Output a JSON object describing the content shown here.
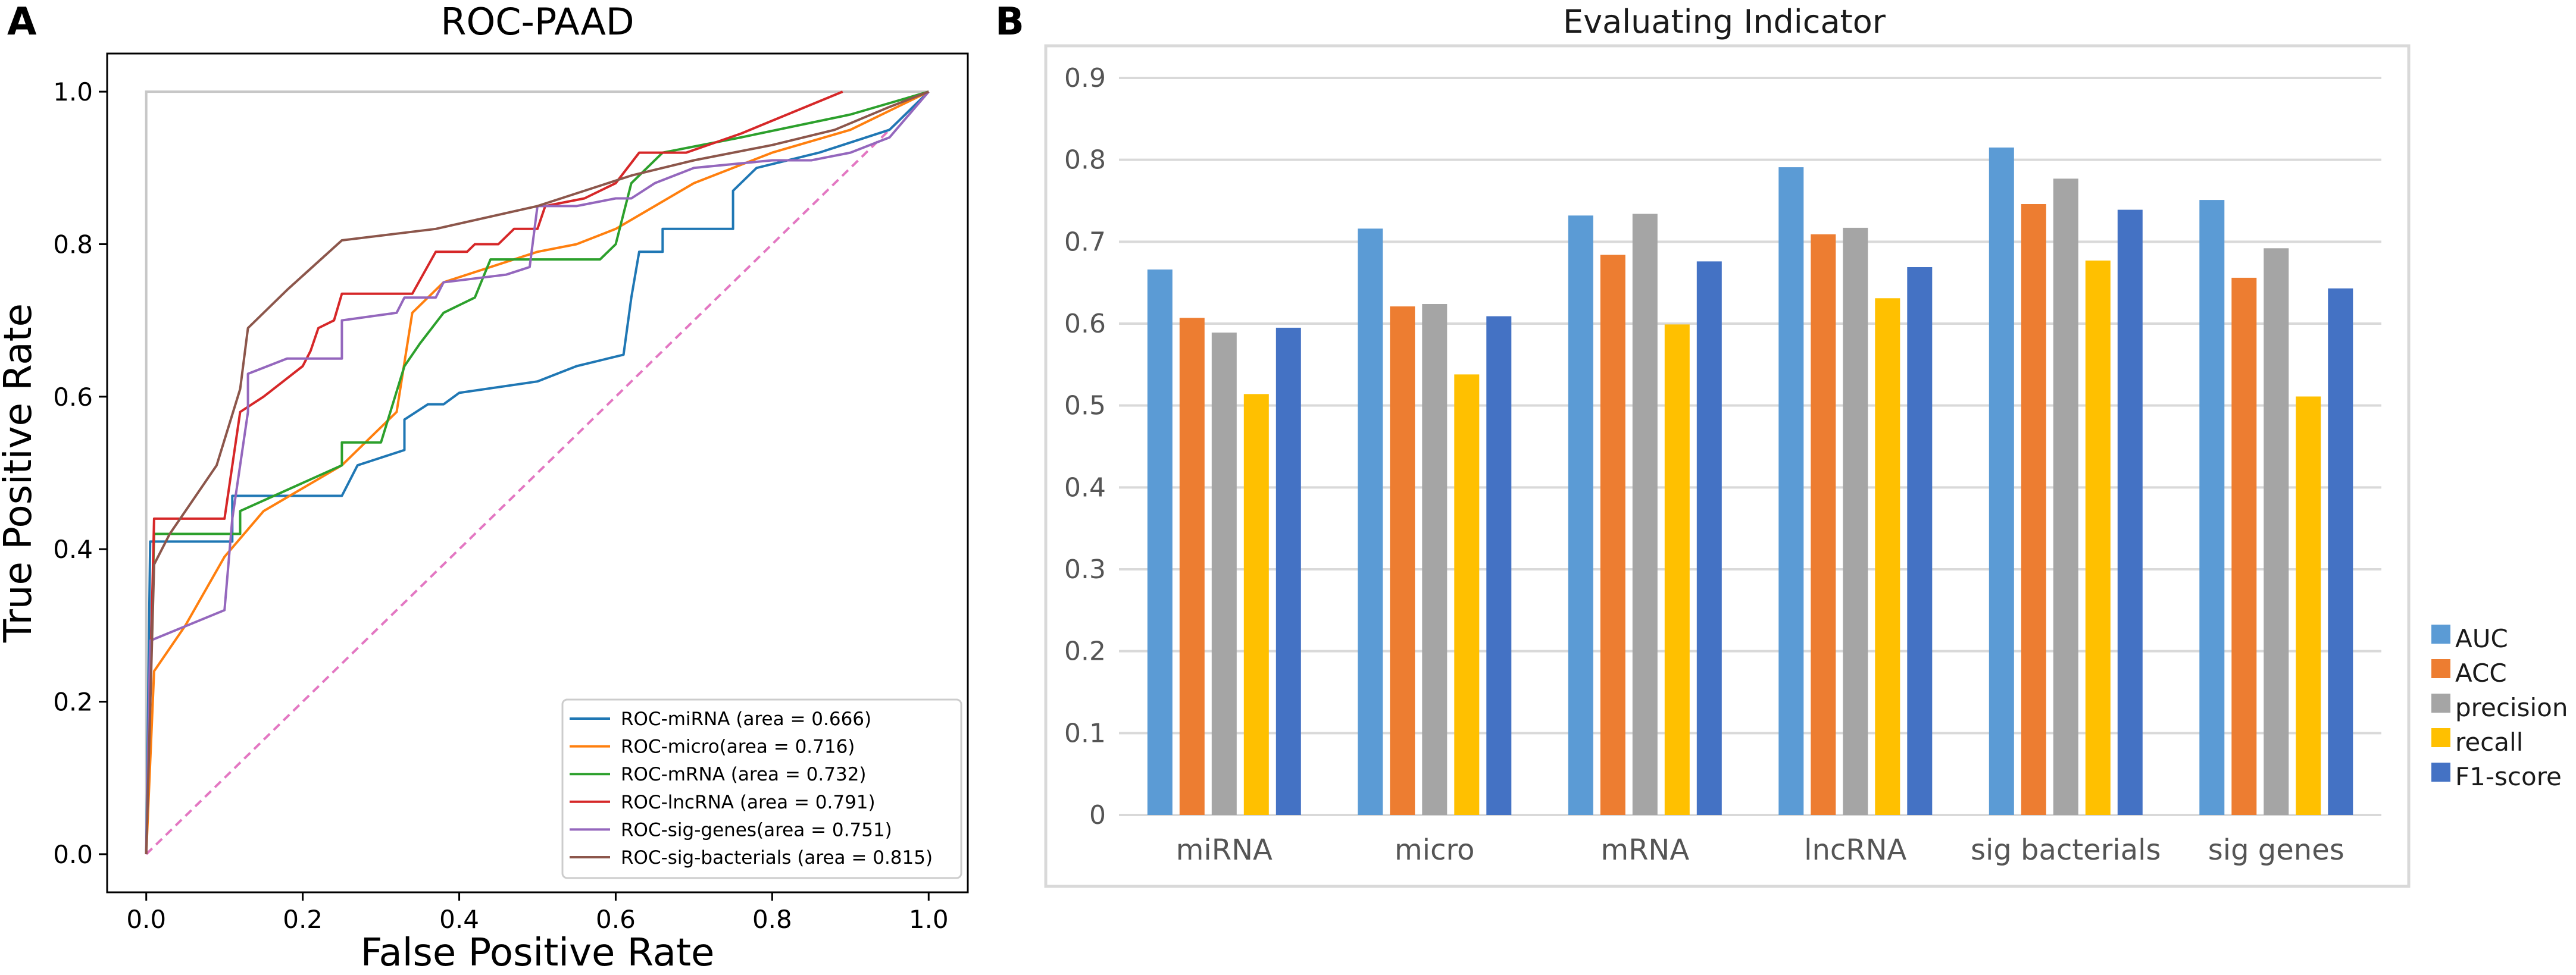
{
  "panel_a": {
    "letter": "A",
    "title": "ROC-PAAD",
    "xlabel": "False Positive Rate",
    "ylabel": "True Positive Rate",
    "xticks": [
      "0.0",
      "0.2",
      "0.4",
      "0.6",
      "0.8",
      "1.0"
    ],
    "yticks": [
      "0.0",
      "0.2",
      "0.4",
      "0.6",
      "0.8",
      "1.0"
    ]
  },
  "panel_b": {
    "letter": "B",
    "title": "Evaluating Indicator",
    "yticks": [
      "0",
      "0.1",
      "0.2",
      "0.3",
      "0.4",
      "0.5",
      "0.6",
      "0.7",
      "0.8",
      "0.9"
    ]
  },
  "chart_data": [
    {
      "type": "line",
      "title": "ROC-PAAD",
      "xlabel": "False Positive Rate",
      "ylabel": "True Positive Rate",
      "xlim": [
        -0.05,
        1.05
      ],
      "ylim": [
        -0.05,
        1.05
      ],
      "legend_position": "lower-right",
      "reference_lines": [
        {
          "name": "perfect",
          "color": "#c7c7c7",
          "style": "solid",
          "x": [
            0,
            0,
            1
          ],
          "y": [
            0,
            1,
            1
          ]
        },
        {
          "name": "chance",
          "color": "#e377c2",
          "style": "dashed",
          "x": [
            0,
            1
          ],
          "y": [
            0,
            1
          ]
        }
      ],
      "series": [
        {
          "name": "ROC-miRNA (area = 0.666)",
          "color": "#1f77b4",
          "x": [
            0,
            0.005,
            0.005,
            0.11,
            0.11,
            0.25,
            0.27,
            0.33,
            0.33,
            0.36,
            0.38,
            0.4,
            0.5,
            0.55,
            0.61,
            0.62,
            0.63,
            0.63,
            0.66,
            0.66,
            0.73,
            0.75,
            0.75,
            0.78,
            0.86,
            0.95,
            1.0
          ],
          "y": [
            0,
            0.41,
            0.41,
            0.41,
            0.47,
            0.47,
            0.51,
            0.53,
            0.57,
            0.59,
            0.59,
            0.605,
            0.62,
            0.64,
            0.655,
            0.73,
            0.79,
            0.79,
            0.79,
            0.82,
            0.82,
            0.82,
            0.87,
            0.9,
            0.92,
            0.95,
            1.0
          ]
        },
        {
          "name": "ROC-micro(area = 0.716)",
          "color": "#ff7f0e",
          "x": [
            0,
            0.01,
            0.05,
            0.1,
            0.15,
            0.25,
            0.32,
            0.34,
            0.38,
            0.5,
            0.55,
            0.6,
            0.65,
            0.7,
            0.8,
            0.9,
            1.0
          ],
          "y": [
            0,
            0.24,
            0.3,
            0.39,
            0.45,
            0.51,
            0.58,
            0.71,
            0.75,
            0.79,
            0.8,
            0.82,
            0.85,
            0.88,
            0.92,
            0.95,
            1.0
          ]
        },
        {
          "name": "ROC-mRNA (area = 0.732)",
          "color": "#2ca02c",
          "x": [
            0,
            0.01,
            0.01,
            0.12,
            0.12,
            0.25,
            0.25,
            0.3,
            0.33,
            0.35,
            0.38,
            0.4,
            0.42,
            0.44,
            0.44,
            0.58,
            0.6,
            0.62,
            0.66,
            0.76,
            0.9,
            1.0
          ],
          "y": [
            0,
            0.42,
            0.42,
            0.42,
            0.45,
            0.51,
            0.54,
            0.54,
            0.64,
            0.67,
            0.71,
            0.72,
            0.73,
            0.78,
            0.78,
            0.78,
            0.8,
            0.88,
            0.92,
            0.94,
            0.97,
            1.0
          ]
        },
        {
          "name": "ROC-lncRNA (area = 0.791)",
          "color": "#d62728",
          "x": [
            0,
            0.01,
            0.01,
            0.1,
            0.12,
            0.15,
            0.2,
            0.21,
            0.22,
            0.24,
            0.25,
            0.34,
            0.37,
            0.41,
            0.42,
            0.45,
            0.47,
            0.5,
            0.51,
            0.56,
            0.6,
            0.63,
            0.69,
            0.76,
            0.89
          ],
          "y": [
            0,
            0.44,
            0.44,
            0.44,
            0.58,
            0.6,
            0.64,
            0.66,
            0.69,
            0.7,
            0.735,
            0.735,
            0.79,
            0.79,
            0.8,
            0.8,
            0.82,
            0.82,
            0.85,
            0.86,
            0.88,
            0.92,
            0.92,
            0.945,
            1.0
          ]
        },
        {
          "name": "ROC-sig-genes(area = 0.751)",
          "color": "#9467bd",
          "x": [
            0,
            0.005,
            0.1,
            0.11,
            0.13,
            0.13,
            0.18,
            0.25,
            0.25,
            0.32,
            0.33,
            0.37,
            0.38,
            0.46,
            0.49,
            0.5,
            0.55,
            0.6,
            0.62,
            0.65,
            0.7,
            0.8,
            0.85,
            0.9,
            0.95,
            1.0
          ],
          "y": [
            0,
            0.28,
            0.32,
            0.44,
            0.58,
            0.63,
            0.65,
            0.65,
            0.7,
            0.71,
            0.73,
            0.73,
            0.75,
            0.76,
            0.77,
            0.85,
            0.85,
            0.86,
            0.86,
            0.88,
            0.9,
            0.91,
            0.91,
            0.92,
            0.94,
            1.0
          ]
        },
        {
          "name": "ROC-sig-bacterials (area = 0.815)",
          "color": "#8c564b",
          "x": [
            0,
            0.01,
            0.03,
            0.05,
            0.09,
            0.12,
            0.13,
            0.18,
            0.25,
            0.37,
            0.5,
            0.62,
            0.7,
            0.8,
            0.88,
            0.95,
            1.0
          ],
          "y": [
            0,
            0.38,
            0.42,
            0.45,
            0.51,
            0.61,
            0.69,
            0.74,
            0.805,
            0.82,
            0.85,
            0.89,
            0.91,
            0.93,
            0.95,
            0.98,
            1.0
          ]
        }
      ]
    },
    {
      "type": "bar",
      "title": "Evaluating Indicator",
      "xlabel": "",
      "ylabel": "",
      "ylim": [
        0,
        0.9
      ],
      "grid": true,
      "legend_position": "right",
      "categories": [
        "miRNA",
        "micro",
        "mRNA",
        "lncRNA",
        "sig bacterials",
        "sig genes"
      ],
      "series": [
        {
          "name": "AUC",
          "color": "#5b9bd5",
          "values": [
            0.666,
            0.716,
            0.732,
            0.791,
            0.815,
            0.751
          ]
        },
        {
          "name": "ACC",
          "color": "#ed7d31",
          "values": [
            0.607,
            0.621,
            0.684,
            0.709,
            0.746,
            0.656
          ]
        },
        {
          "name": "precision",
          "color": "#a5a5a5",
          "values": [
            0.589,
            0.624,
            0.734,
            0.717,
            0.777,
            0.692
          ]
        },
        {
          "name": "recall",
          "color": "#ffc000",
          "values": [
            0.514,
            0.538,
            0.599,
            0.631,
            0.677,
            0.511
          ]
        },
        {
          "name": "F1-score",
          "color": "#4472c4",
          "values": [
            0.595,
            0.609,
            0.676,
            0.669,
            0.739,
            0.643
          ]
        }
      ]
    }
  ]
}
